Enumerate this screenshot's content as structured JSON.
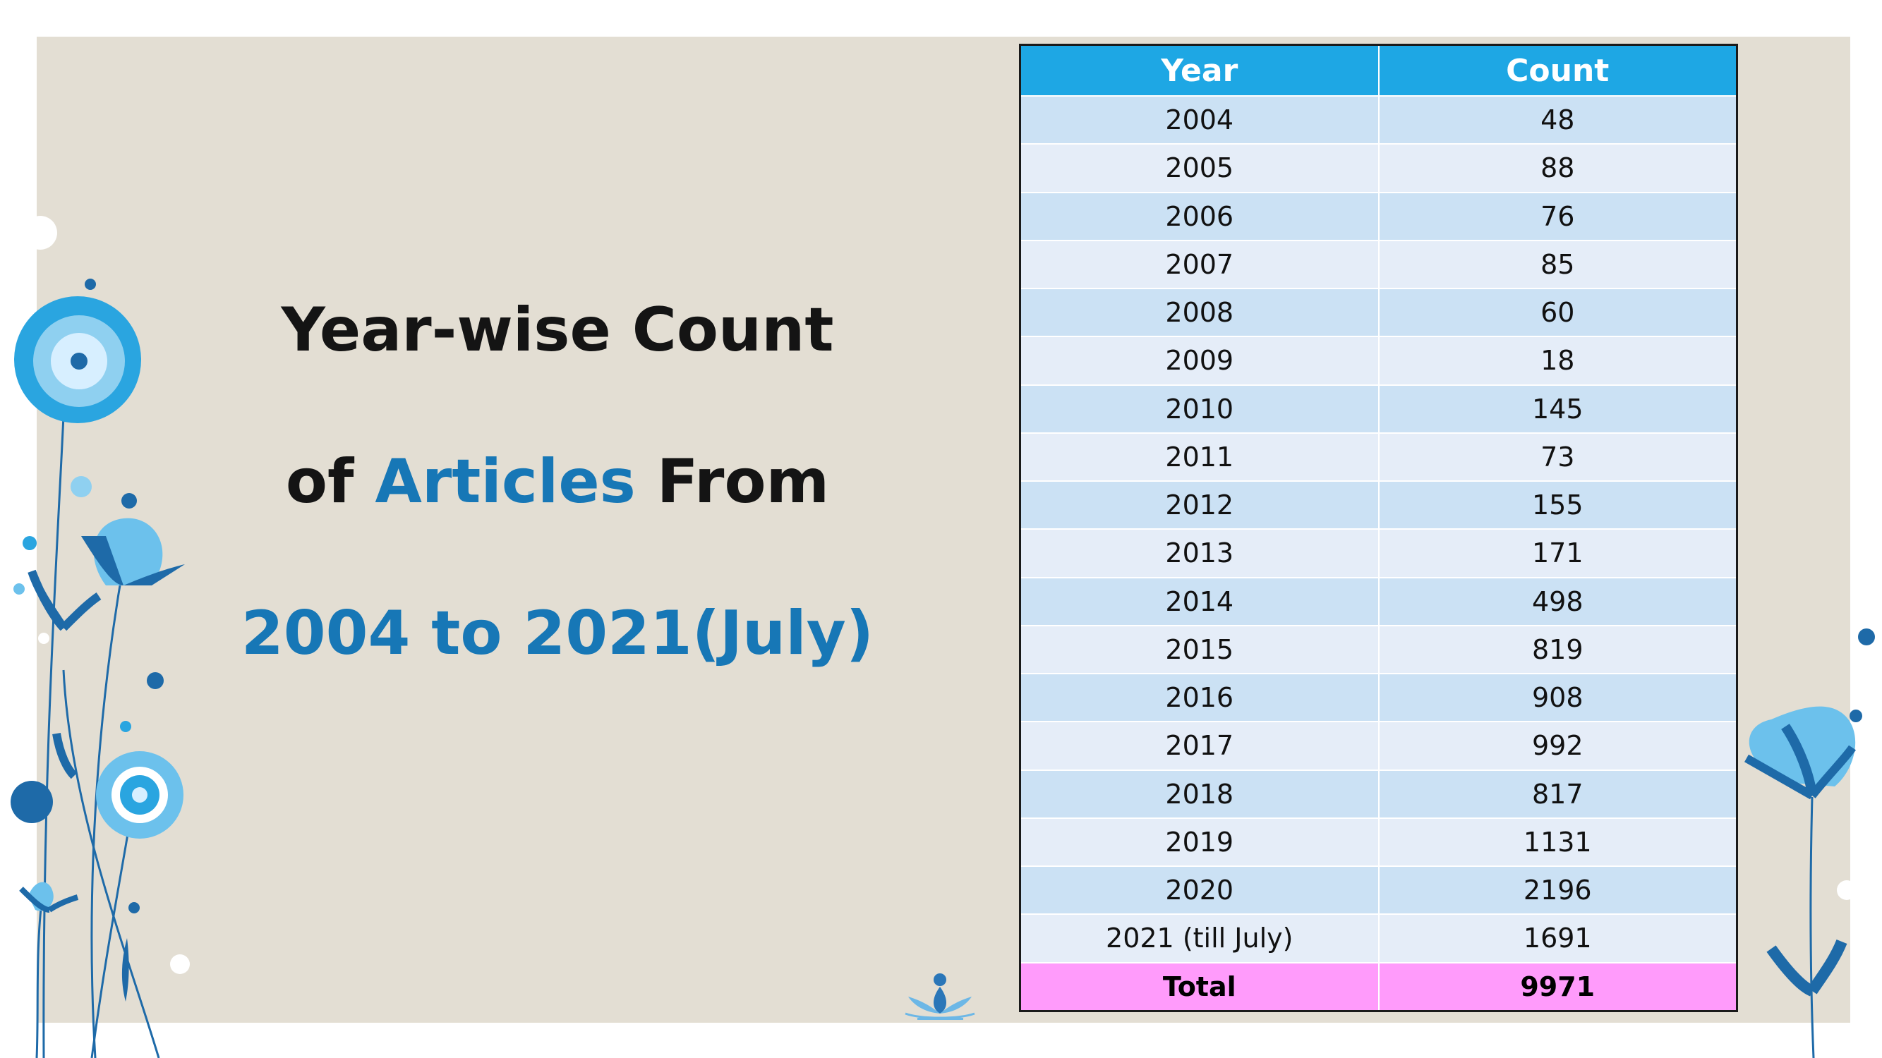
{
  "title": {
    "line1": "Year-wise Count",
    "line2_prefix": "of ",
    "line2_highlight": "Articles",
    "line2_suffix": " From",
    "line3": "2004 to 2021(July)"
  },
  "table": {
    "headers": [
      "Year",
      "Count"
    ],
    "rows": [
      {
        "year": "2004",
        "count": "48"
      },
      {
        "year": "2005",
        "count": "88"
      },
      {
        "year": "2006",
        "count": "76"
      },
      {
        "year": "2007",
        "count": "85"
      },
      {
        "year": "2008",
        "count": "60"
      },
      {
        "year": "2009",
        "count": "18"
      },
      {
        "year": "2010",
        "count": "145"
      },
      {
        "year": "2011",
        "count": "73"
      },
      {
        "year": "2012",
        "count": "155"
      },
      {
        "year": "2013",
        "count": "171"
      },
      {
        "year": "2014",
        "count": "498"
      },
      {
        "year": "2015",
        "count": "819"
      },
      {
        "year": "2016",
        "count": "908"
      },
      {
        "year": "2017",
        "count": "992"
      },
      {
        "year": "2018",
        "count": "817"
      },
      {
        "year": "2019",
        "count": "1131"
      },
      {
        "year": "2020",
        "count": "2196"
      },
      {
        "year": "2021 (till July)",
        "count": "1691"
      }
    ],
    "total": {
      "label": "Total",
      "count": "9971"
    }
  },
  "colors": {
    "background": "#e3ded3",
    "header": "#1ea7e4",
    "row_odd": "#cbe1f4",
    "row_even": "#e5edf8",
    "total_row": "#ff9bfb",
    "accent_text": "#1777b6"
  },
  "icons": [
    "blue-flower-decoration-icon",
    "lotus-logo-icon"
  ]
}
